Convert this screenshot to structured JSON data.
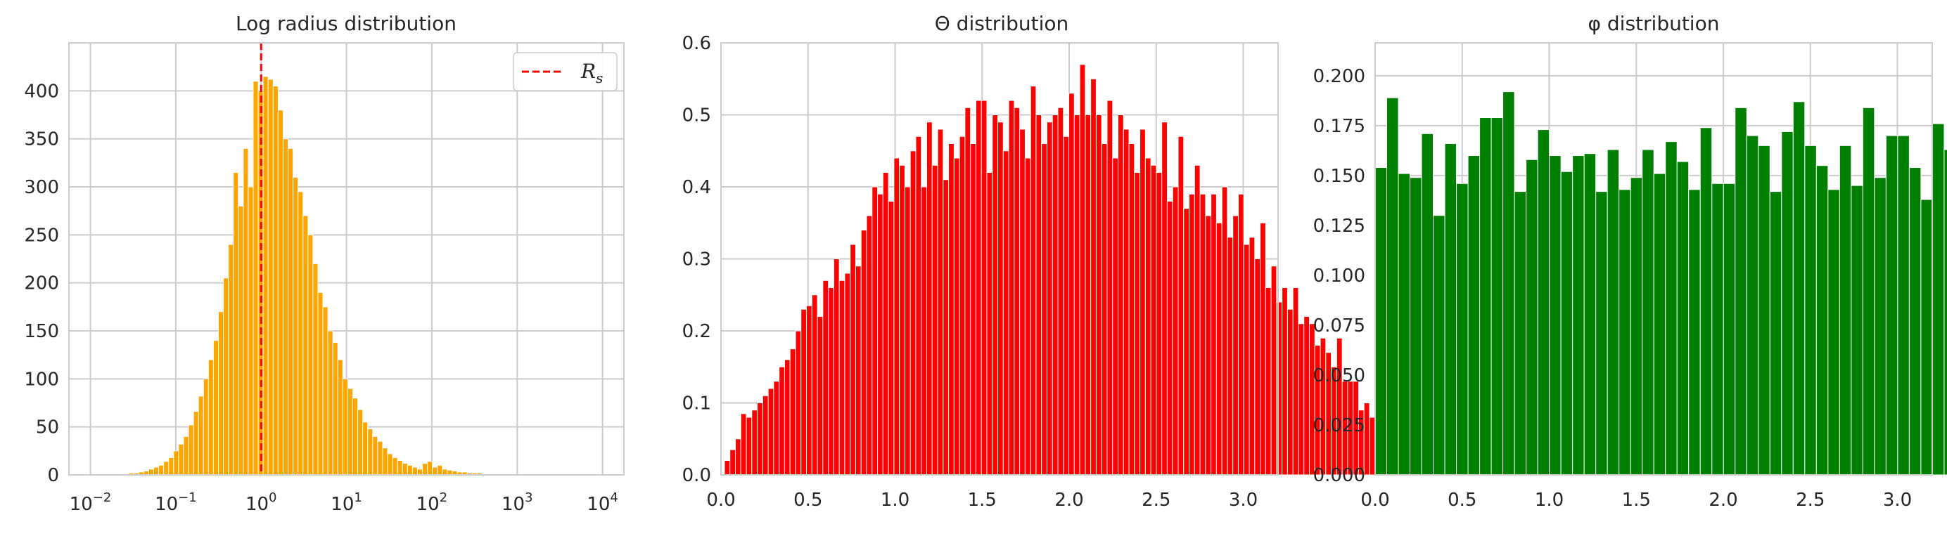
{
  "chart_data": [
    {
      "type": "bar",
      "title": "Log radius distribution",
      "xscale": "log",
      "xlim": [
        0.0056,
        17800
      ],
      "ylim": [
        0,
        450
      ],
      "xticks": [
        {
          "value": 0.01,
          "base": "10",
          "exp": "−2"
        },
        {
          "value": 0.1,
          "base": "10",
          "exp": "−1"
        },
        {
          "value": 1,
          "base": "10",
          "exp": "0"
        },
        {
          "value": 10,
          "base": "10",
          "exp": "1"
        },
        {
          "value": 100,
          "base": "10",
          "exp": "2"
        },
        {
          "value": 1000,
          "base": "10",
          "exp": "3"
        },
        {
          "value": 10000,
          "base": "10",
          "exp": "4"
        }
      ],
      "yticks": [
        "0",
        "50",
        "100",
        "150",
        "200",
        "250",
        "300",
        "350",
        "400"
      ],
      "ytick_values": [
        0,
        50,
        100,
        150,
        200,
        250,
        300,
        350,
        400
      ],
      "bar_color": "#ffa500",
      "bins_log10_start": -1.55,
      "bins_log10_width": 0.0583,
      "values": [
        2,
        2,
        3,
        4,
        6,
        8,
        10,
        14,
        18,
        25,
        32,
        40,
        52,
        66,
        82,
        100,
        120,
        140,
        170,
        205,
        240,
        315,
        280,
        340,
        300,
        410,
        400,
        415,
        412,
        405,
        380,
        350,
        340,
        310,
        295,
        270,
        250,
        220,
        190,
        175,
        150,
        138,
        120,
        100,
        90,
        80,
        68,
        55,
        48,
        40,
        35,
        28,
        22,
        18,
        15,
        12,
        10,
        8,
        6,
        12,
        14,
        8,
        10,
        6,
        5,
        4,
        3,
        3,
        2,
        2,
        2,
        1,
        1,
        1,
        1,
        1
      ],
      "reference_line": {
        "value": 1.0,
        "color": "#ff0000",
        "style": "dashed"
      },
      "legend": {
        "placement": "top-right",
        "label_base": "R",
        "label_sub": "s"
      },
      "grid": true
    },
    {
      "type": "bar",
      "title": "Θ distribution",
      "xlim": [
        0,
        3.2
      ],
      "ylim": [
        0,
        0.6
      ],
      "xticks": [
        "0.0",
        "0.5",
        "1.0",
        "1.5",
        "2.0",
        "2.5",
        "3.0"
      ],
      "xtick_values": [
        0,
        0.5,
        1.0,
        1.5,
        2.0,
        2.5,
        3.0
      ],
      "yticks": [
        "0.0",
        "0.1",
        "0.2",
        "0.3",
        "0.4",
        "0.5",
        "0.6"
      ],
      "ytick_values": [
        0,
        0.1,
        0.2,
        0.3,
        0.4,
        0.5,
        0.6
      ],
      "bar_color": "#ff0000",
      "bin_start": 0.02,
      "bin_width": 0.0314,
      "values": [
        0.02,
        0.035,
        0.05,
        0.085,
        0.08,
        0.09,
        0.1,
        0.11,
        0.12,
        0.13,
        0.15,
        0.16,
        0.175,
        0.2,
        0.23,
        0.235,
        0.25,
        0.22,
        0.27,
        0.26,
        0.3,
        0.27,
        0.28,
        0.32,
        0.29,
        0.34,
        0.36,
        0.4,
        0.39,
        0.42,
        0.38,
        0.44,
        0.43,
        0.4,
        0.45,
        0.47,
        0.4,
        0.49,
        0.43,
        0.48,
        0.41,
        0.46,
        0.44,
        0.47,
        0.51,
        0.46,
        0.52,
        0.52,
        0.42,
        0.5,
        0.49,
        0.45,
        0.52,
        0.51,
        0.48,
        0.44,
        0.54,
        0.5,
        0.46,
        0.49,
        0.5,
        0.51,
        0.47,
        0.53,
        0.5,
        0.57,
        0.5,
        0.55,
        0.5,
        0.46,
        0.52,
        0.44,
        0.5,
        0.48,
        0.46,
        0.42,
        0.48,
        0.44,
        0.43,
        0.42,
        0.49,
        0.38,
        0.4,
        0.47,
        0.37,
        0.39,
        0.43,
        0.39,
        0.36,
        0.39,
        0.35,
        0.4,
        0.33,
        0.36,
        0.39,
        0.32,
        0.33,
        0.3,
        0.35,
        0.26,
        0.29,
        0.24,
        0.26,
        0.23,
        0.26,
        0.21,
        0.22,
        0.21,
        0.18,
        0.19,
        0.17,
        0.15,
        0.19,
        0.13,
        0.13,
        0.13,
        0.09,
        0.1,
        0.08,
        0.05,
        0.045,
        0.035,
        0.02,
        0.015
      ],
      "grid": true
    },
    {
      "type": "bar",
      "title": "φ distribution",
      "xlim": [
        0,
        3.2
      ],
      "ylim": [
        0,
        0.2165
      ],
      "xticks": [
        "0.0",
        "0.5",
        "1.0",
        "1.5",
        "2.0",
        "2.5",
        "3.0"
      ],
      "xtick_values": [
        0,
        0.5,
        1.0,
        1.5,
        2.0,
        2.5,
        3.0
      ],
      "yticks": [
        "0.000",
        "0.025",
        "0.050",
        "0.075",
        "0.100",
        "0.125",
        "0.150",
        "0.175",
        "0.200"
      ],
      "ytick_values": [
        0,
        0.025,
        0.05,
        0.075,
        0.1,
        0.125,
        0.15,
        0.175,
        0.2
      ],
      "bar_color": "#008000",
      "bin_start": 0.0,
      "bin_width": 0.0667,
      "values": [
        0.154,
        0.189,
        0.151,
        0.149,
        0.171,
        0.13,
        0.166,
        0.146,
        0.16,
        0.179,
        0.179,
        0.192,
        0.142,
        0.158,
        0.173,
        0.16,
        0.152,
        0.16,
        0.161,
        0.142,
        0.163,
        0.143,
        0.149,
        0.163,
        0.151,
        0.167,
        0.157,
        0.143,
        0.174,
        0.146,
        0.146,
        0.184,
        0.17,
        0.165,
        0.142,
        0.172,
        0.187,
        0.165,
        0.155,
        0.143,
        0.165,
        0.145,
        0.184,
        0.149,
        0.17,
        0.17,
        0.154,
        0.138,
        0.176,
        0.163
      ],
      "grid": true
    }
  ]
}
